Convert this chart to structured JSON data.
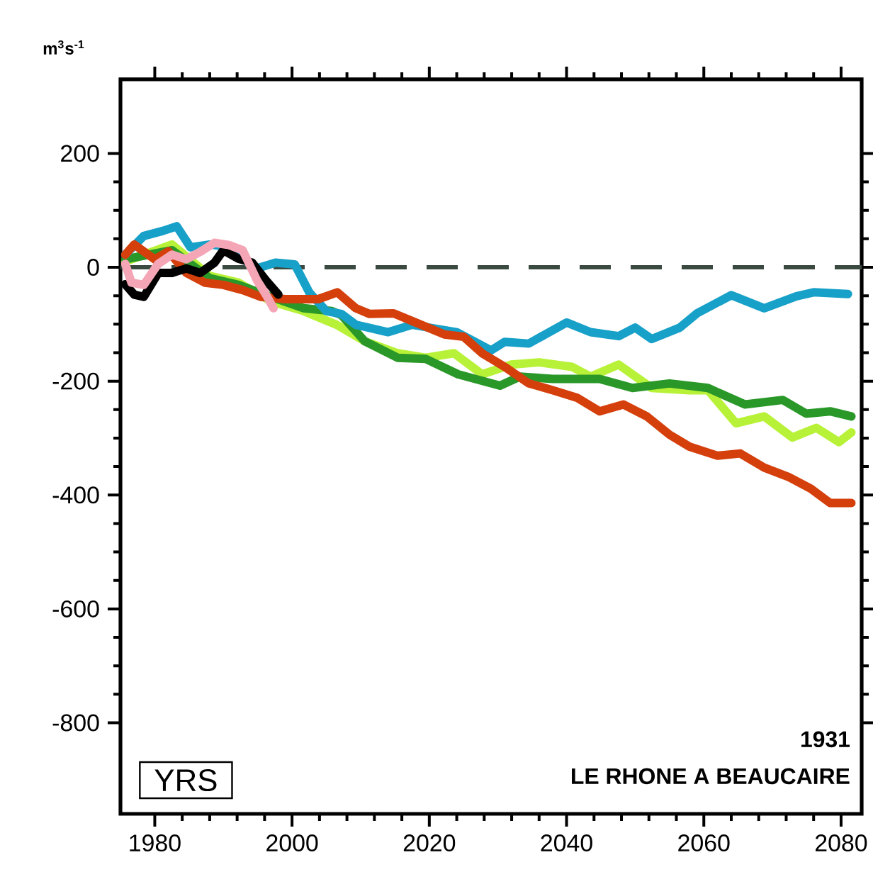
{
  "chart_data": {
    "type": "line",
    "ylabel": "m$^{3}$s$^{-1}$",
    "annotations": [
      "YRS",
      "1931",
      "LE RHONE A BEAUCAIRE"
    ],
    "xlim": [
      1975,
      2083
    ],
    "ylim": [
      -960,
      330
    ],
    "xticks": [
      1980,
      2000,
      2020,
      2040,
      2060,
      2080
    ],
    "yticks": [
      -800,
      -600,
      -400,
      -200,
      0,
      200
    ],
    "grid": false,
    "ref_lines": [
      {
        "axis": "y",
        "value": 0,
        "color": "#3b4a40",
        "line_style": "dashed"
      }
    ],
    "series": [
      {
        "color": "#b8f238",
        "x": [
          1975.7,
          1982.5,
          1988,
          1992.2,
          1997,
          2001.7,
          2006.5,
          2010.6,
          2015.4,
          2019.5,
          2023.6,
          2027.7,
          2031.9,
          2036,
          2040.8,
          2043.5,
          2047.6,
          2052.4,
          2057.9,
          2060.6,
          2064.7,
          2068.8,
          2072.9,
          2076.4,
          2079.7,
          2081.5
        ],
        "values": [
          10,
          40,
          -15,
          -27,
          -60,
          -77,
          -101,
          -130,
          -151,
          -159,
          -151,
          -188,
          -171,
          -167,
          -175,
          -192,
          -171,
          -212,
          -216,
          -216,
          -274,
          -262,
          -299,
          -282,
          -307,
          -290
        ]
      },
      {
        "color": "#2a9828",
        "x": [
          1975.7,
          1982.5,
          1988,
          1992.2,
          1997,
          2001.7,
          2005.8,
          2007.2,
          2010.6,
          2015.4,
          2019.5,
          2024.2,
          2030.3,
          2033.2,
          2038,
          2044.8,
          2049.6,
          2055,
          2060.6,
          2066,
          2071.5,
          2074.9,
          2078.4,
          2081.5
        ],
        "values": [
          14,
          30,
          -19,
          -31,
          -52,
          -72,
          -77,
          -84,
          -130,
          -159,
          -161,
          -188,
          -208,
          -192,
          -196,
          -196,
          -212,
          -204,
          -212,
          -241,
          -233,
          -257,
          -253,
          -262
        ]
      },
      {
        "color": "#17a0c8",
        "x": [
          1975.7,
          1978.4,
          1981.2,
          1983.2,
          1985.2,
          1988,
          1990,
          1992.8,
          1994.9,
          1997.6,
          2000.4,
          2002.5,
          2005,
          2007.2,
          2009.3,
          2014,
          2017.5,
          2024,
          2029,
          2031,
          2034.5,
          2040,
          2043.5,
          2047.6,
          2050,
          2052.4,
          2056.5,
          2059,
          2064,
          2068.8,
          2073.5,
          2076,
          2081
        ],
        "values": [
          22,
          55,
          64,
          72,
          35,
          40,
          37,
          15,
          -2,
          8,
          5,
          -44,
          -77,
          -82,
          -101,
          -114,
          -101,
          -114,
          -146,
          -131,
          -134,
          -97,
          -114,
          -121,
          -106,
          -126,
          -106,
          -81,
          -49,
          -72,
          -51,
          -44,
          -47
        ]
      },
      {
        "color": "#d43f0c",
        "x": [
          1975.7,
          1977,
          1980,
          1982,
          1984.6,
          1987.3,
          1990,
          1992.8,
          1995.5,
          1999,
          2003.8,
          2006.6,
          2009.3,
          2011.3,
          2014.8,
          2018,
          2022.2,
          2025,
          2027.7,
          2031,
          2034.5,
          2038,
          2041.5,
          2044.8,
          2048.3,
          2051.7,
          2055,
          2057.9,
          2062,
          2065.3,
          2068.8,
          2072.3,
          2075.6,
          2078.4,
          2081.5
        ],
        "values": [
          22,
          40,
          14,
          28,
          -10,
          -27,
          -31,
          -40,
          -52,
          -56,
          -56,
          -44,
          -72,
          -82,
          -81,
          -97,
          -118,
          -122,
          -151,
          -175,
          -204,
          -216,
          -229,
          -253,
          -241,
          -262,
          -294,
          -315,
          -331,
          -327,
          -352,
          -368,
          -389,
          -414,
          -414
        ]
      },
      {
        "color": "#000000",
        "x": [
          1975.7,
          1977,
          1978.4,
          1980.5,
          1982.5,
          1984.6,
          1986.6,
          1988.7,
          1990,
          1992.2,
          1994.2,
          1996.2,
          1998
        ],
        "values": [
          -30,
          -48,
          -52,
          -10,
          -10,
          -2,
          -10,
          8,
          30,
          15,
          8,
          -23,
          -48
        ]
      },
      {
        "color": "#f4a6b6",
        "x": [
          1975.7,
          1976.6,
          1978.4,
          1980.5,
          1982.5,
          1984.6,
          1986.6,
          1988.7,
          1990.8,
          1992.8,
          1994.9,
          1996.2,
          1997.3
        ],
        "values": [
          6,
          -27,
          -31,
          6,
          22,
          14,
          27,
          43,
          39,
          30,
          -23,
          -48,
          -72
        ]
      }
    ]
  }
}
